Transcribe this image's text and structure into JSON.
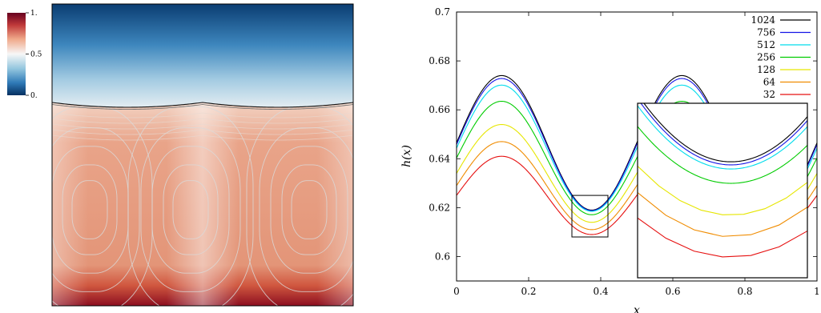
{
  "colorbar": {
    "ticks": [
      {
        "value": 1,
        "label": "1."
      },
      {
        "value": 0.5,
        "label": "0.5"
      },
      {
        "value": 0,
        "label": "0."
      }
    ]
  },
  "chart_data": {
    "type": "line",
    "xlabel": "x",
    "ylabel": "h(x)",
    "xlim": [
      0,
      1
    ],
    "ylim": [
      0.59,
      0.7
    ],
    "xticks": [
      {
        "value": 0,
        "label": "0"
      },
      {
        "value": 0.2,
        "label": "0.2"
      },
      {
        "value": 0.4,
        "label": "0.4"
      },
      {
        "value": 0.6,
        "label": "0.6"
      },
      {
        "value": 0.8,
        "label": "0.8"
      },
      {
        "value": 1,
        "label": "1"
      }
    ],
    "yticks": [
      {
        "value": 0.6,
        "label": "0.6"
      },
      {
        "value": 0.62,
        "label": "0.62"
      },
      {
        "value": 0.64,
        "label": "0.64"
      },
      {
        "value": 0.66,
        "label": "0.66"
      },
      {
        "value": 0.68,
        "label": "0.68"
      },
      {
        "value": 0.7,
        "label": "0.7"
      }
    ],
    "legend_position": "top-right",
    "inset": {
      "xlim": [
        0.32,
        0.42
      ],
      "ylim": [
        0.608,
        0.625
      ]
    },
    "series": [
      {
        "name": "1024",
        "color": "#000000",
        "mean": 0.6465,
        "amp": 0.0275,
        "min": 0.6193
      },
      {
        "name": "756",
        "color": "#1414e6",
        "mean": 0.6458,
        "amp": 0.027,
        "min": 0.619
      },
      {
        "name": "512",
        "color": "#00dcec",
        "mean": 0.6443,
        "amp": 0.0258,
        "min": 0.6186
      },
      {
        "name": "256",
        "color": "#00cc00",
        "mean": 0.6403,
        "amp": 0.0232,
        "min": 0.6172
      },
      {
        "name": "128",
        "color": "#e6e600",
        "mean": 0.634,
        "amp": 0.02,
        "min": 0.6141
      },
      {
        "name": "64",
        "color": "#f08c00",
        "mean": 0.629,
        "amp": 0.018,
        "min": 0.612
      },
      {
        "name": "32",
        "color": "#e61010",
        "mean": 0.625,
        "amp": 0.016,
        "min": 0.61
      }
    ]
  }
}
